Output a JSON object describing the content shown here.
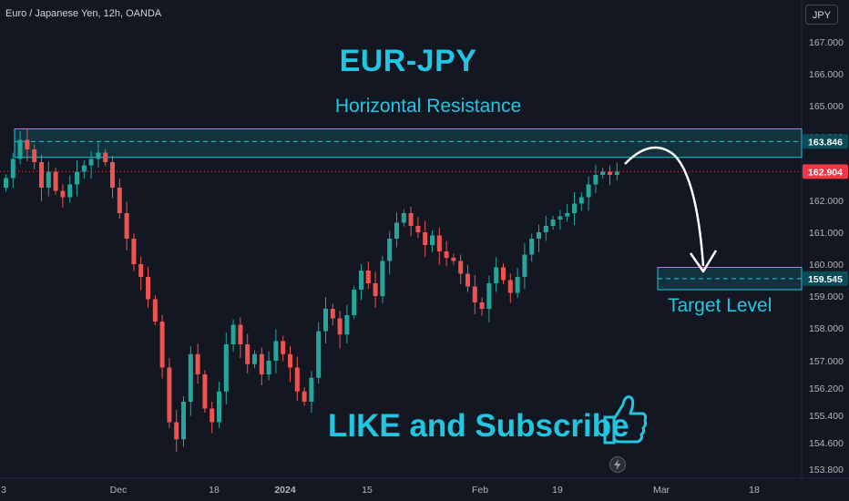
{
  "header": {
    "symbol_info": "Euro / Japanese Yen, 12h, OANDA",
    "currency_button": "JPY"
  },
  "annotations": {
    "title": "EUR-JPY",
    "subtitle": "Horizontal Resistance",
    "target_label": "Target Level",
    "cta": "LIKE and Subscribe"
  },
  "icons": {
    "cta_icon": "thumbs-up-icon",
    "replay_icon": "lightning-icon"
  },
  "colors": {
    "background": "#131722",
    "up": "#26a69a",
    "down": "#ef5350",
    "accent": "#22c6e0",
    "zone_fill": "#0e4a55",
    "last_price": "#f23645"
  },
  "chart_data": {
    "type": "candlestick",
    "ylim": [
      153.6,
      167.4
    ],
    "y_ticks": [
      "167.000",
      "166.000",
      "165.000",
      "164.000",
      "163.000",
      "162.000",
      "161.000",
      "160.000",
      "159.000",
      "158.000",
      "157.000",
      "156.200",
      "155.400",
      "154.600",
      "153.800"
    ],
    "x_ticks": [
      "3",
      "Dec",
      "18",
      "2024",
      "15",
      "Feb",
      "19",
      "Mar",
      "18"
    ],
    "price_labels": {
      "resistance": "163.846",
      "last": "162.904",
      "target": "159.545"
    },
    "resistance_zone": [
      163.35,
      164.25
    ],
    "resistance_line": 163.846,
    "last_price": 162.904,
    "target_zone": [
      159.2,
      159.9
    ],
    "target_line": 159.545,
    "close_series": [
      162.7,
      163.3,
      163.9,
      163.6,
      163.2,
      162.4,
      162.9,
      162.3,
      162.1,
      162.5,
      162.9,
      163.1,
      163.3,
      163.5,
      163.2,
      162.4,
      161.6,
      160.8,
      160.0,
      159.6,
      158.9,
      158.2,
      156.8,
      155.2,
      154.7,
      155.8,
      157.2,
      156.6,
      155.6,
      155.2,
      156.1,
      157.5,
      158.1,
      157.5,
      156.9,
      157.2,
      156.6,
      157.0,
      157.6,
      157.2,
      156.8,
      156.1,
      155.8,
      156.5,
      157.9,
      158.6,
      158.3,
      157.8,
      158.4,
      159.2,
      159.8,
      159.4,
      159.0,
      160.1,
      160.8,
      161.3,
      161.6,
      161.2,
      161.0,
      160.6,
      160.9,
      160.4,
      160.2,
      160.1,
      159.7,
      159.3,
      158.8,
      158.6,
      159.4,
      159.9,
      159.5,
      159.1,
      159.6,
      160.3,
      160.8,
      161.0,
      161.2,
      161.4,
      161.5,
      161.6,
      161.9,
      162.1,
      162.5,
      162.8,
      162.9,
      162.8,
      162.904
    ]
  }
}
